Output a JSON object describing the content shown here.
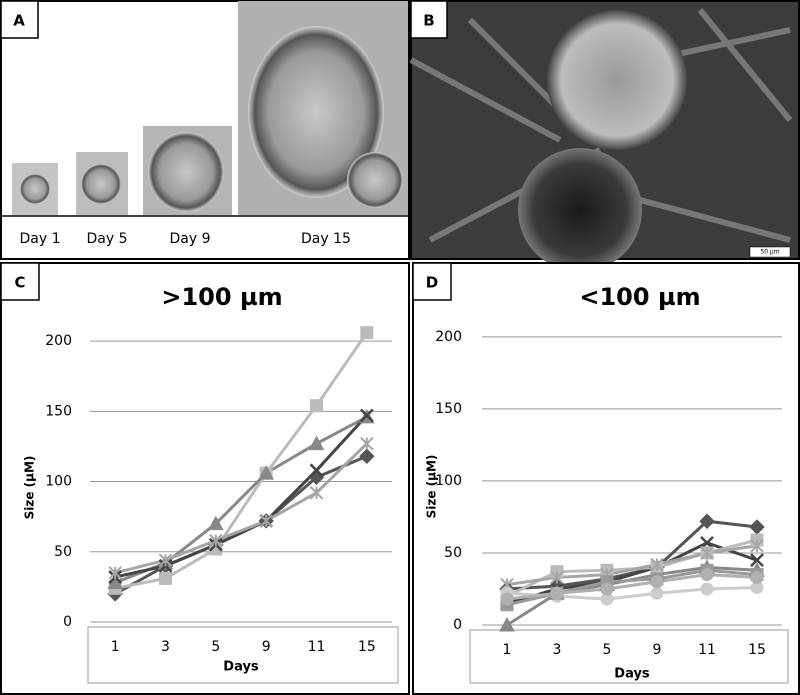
{
  "labels": {
    "a": "A",
    "b": "B",
    "c": "C",
    "d": "D"
  },
  "days": [
    "Day 1",
    "Day 5",
    "Day 9",
    "Day 15"
  ],
  "scale_bar": "50 µm",
  "chart_data": [
    {
      "type": "line",
      "title": ">100 µm",
      "x_label": "Days",
      "y_label": "Size (µM)",
      "categories": [
        "1",
        "3",
        "5",
        "9",
        "11",
        "15"
      ],
      "ylim": [
        0,
        220
      ],
      "yticks": [
        0,
        50,
        100,
        150,
        200
      ],
      "grid": true,
      "series": [
        {
          "color": "#555555",
          "marker": "diamond",
          "values": [
            20,
            40,
            55,
            72,
            103,
            118
          ]
        },
        {
          "color": "#bbbbbb",
          "marker": "square",
          "values": [
            24,
            31,
            52,
            106,
            154,
            206
          ]
        },
        {
          "color": "#888888",
          "marker": "triangle",
          "values": [
            28,
            42,
            70,
            106,
            127,
            146
          ]
        },
        {
          "color": "#444444",
          "marker": "x",
          "values": [
            32,
            40,
            55,
            72,
            108,
            147
          ]
        },
        {
          "color": "#a5a5a5",
          "marker": "star",
          "values": [
            35,
            44,
            58,
            72,
            92,
            127
          ]
        }
      ]
    },
    {
      "type": "line",
      "title": "<100 µm",
      "x_label": "Days",
      "y_label": "Size (µM)",
      "categories": [
        "1",
        "3",
        "5",
        "9",
        "11",
        "15"
      ],
      "ylim": [
        0,
        220
      ],
      "yticks": [
        0,
        50,
        100,
        150,
        200
      ],
      "grid": true,
      "series": [
        {
          "color": "#555555",
          "marker": "diamond",
          "values": [
            25,
            27,
            32,
            40,
            72,
            68
          ]
        },
        {
          "color": "#888888",
          "marker": "triangle",
          "values": [
            0,
            22,
            28,
            35,
            40,
            38
          ]
        },
        {
          "color": "#444444",
          "marker": "x",
          "values": [
            15,
            25,
            30,
            40,
            57,
            45
          ]
        },
        {
          "color": "#bbbbbb",
          "marker": "square",
          "values": [
            20,
            37,
            38,
            40,
            50,
            59
          ]
        },
        {
          "color": "#a5a5a5",
          "marker": "star",
          "values": [
            28,
            33,
            35,
            42,
            50,
            55
          ]
        },
        {
          "color": "#cccccc",
          "marker": "circle",
          "values": [
            22,
            20,
            18,
            22,
            25,
            26
          ]
        },
        {
          "color": "#999999",
          "marker": "square",
          "values": [
            14,
            22,
            30,
            32,
            38,
            35
          ]
        },
        {
          "color": "#b0b0b0",
          "marker": "circle",
          "values": [
            18,
            22,
            25,
            30,
            35,
            33
          ]
        }
      ]
    }
  ]
}
